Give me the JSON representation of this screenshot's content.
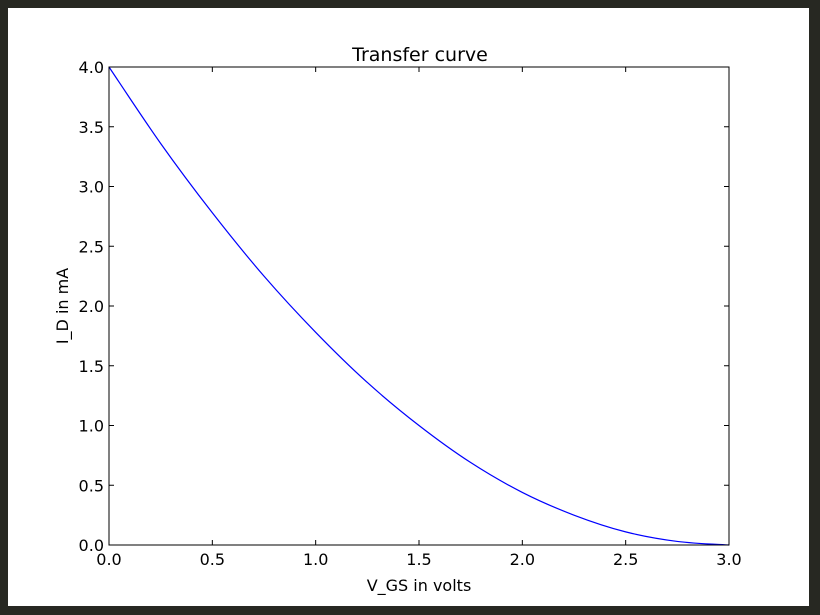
{
  "chart_data": {
    "type": "line",
    "title": "Transfer curve",
    "xlabel": "V_GS in volts",
    "ylabel": "I_D in mA",
    "xlim": [
      0.0,
      3.0
    ],
    "ylim": [
      0.0,
      4.0
    ],
    "x_ticks": [
      0.0,
      0.5,
      1.0,
      1.5,
      2.0,
      2.5,
      3.0
    ],
    "x_tick_labels": [
      "0.0",
      "0.5",
      "1.0",
      "1.5",
      "2.0",
      "2.5",
      "3.0"
    ],
    "y_ticks": [
      0.0,
      0.5,
      1.0,
      1.5,
      2.0,
      2.5,
      3.0,
      3.5,
      4.0
    ],
    "y_tick_labels": [
      "0.0",
      "0.5",
      "1.0",
      "1.5",
      "2.0",
      "2.5",
      "3.0",
      "3.5",
      "4.0"
    ],
    "grid": false,
    "series": [
      {
        "color": "#0000ff",
        "x": [
          0.0,
          0.25,
          0.5,
          0.75,
          1.0,
          1.25,
          1.5,
          1.75,
          2.0,
          2.25,
          2.5,
          2.75,
          3.0
        ],
        "y": [
          4.0,
          3.36,
          2.78,
          2.25,
          1.78,
          1.36,
          1.0,
          0.69,
          0.44,
          0.25,
          0.11,
          0.03,
          0.0
        ]
      }
    ]
  }
}
